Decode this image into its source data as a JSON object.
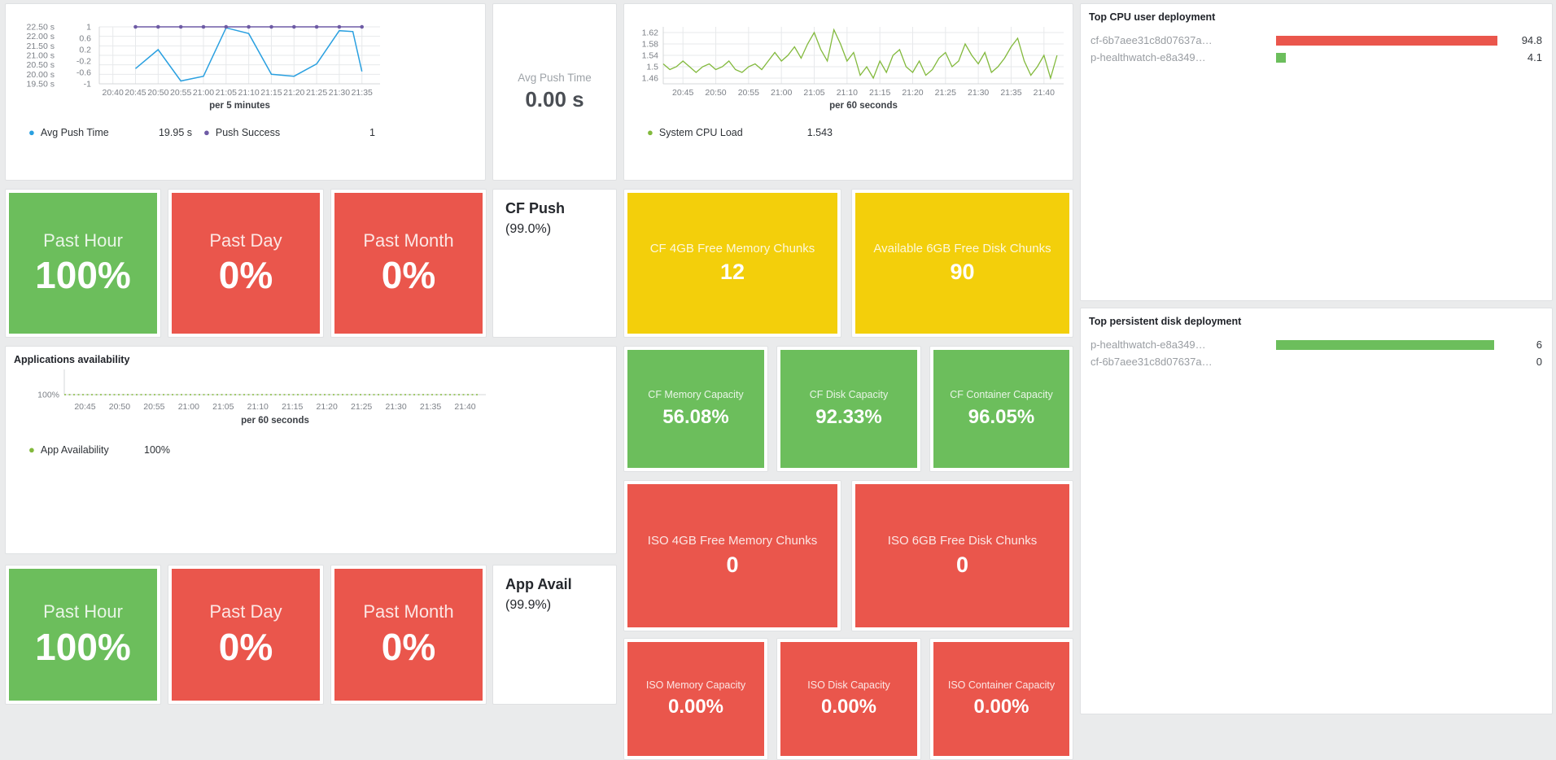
{
  "colors": {
    "green": "#6CBE5C",
    "red": "#EA564C",
    "yellow": "#F3CF0B",
    "blue_series": "#2AA0E0",
    "purple_series": "#6E5BA5",
    "green_series": "#82B93C",
    "panel_bg": "#FFFFFF",
    "page_bg": "#EAEBEC"
  },
  "panel_titles": {
    "apps_availability": "Applications availability",
    "top_cpu": "Top CPU user deployment",
    "top_disk": "Top persistent disk deployment"
  },
  "stat_panels": {
    "avg_push": {
      "label": "Avg Push Time",
      "value": "0.00 s"
    },
    "cf_push": {
      "title": "CF Push",
      "subtitle": "(99.0%)"
    },
    "app_avail": {
      "title": "App Avail",
      "subtitle": "(99.9%)"
    }
  },
  "tiles": {
    "push_hour": {
      "title": "Past Hour",
      "value": "100%"
    },
    "push_day": {
      "title": "Past Day",
      "value": "0%"
    },
    "push_month": {
      "title": "Past Month",
      "value": "0%"
    },
    "cf_mem_chunks": {
      "title": "CF 4GB Free Memory Chunks",
      "value": "12"
    },
    "disk_chunks": {
      "title": "Available 6GB Free Disk Chunks",
      "value": "90"
    },
    "cf_mem_cap": {
      "title": "CF Memory Capacity",
      "value": "56.08%"
    },
    "cf_disk_cap": {
      "title": "CF Disk Capacity",
      "value": "92.33%"
    },
    "cf_cont_cap": {
      "title": "CF Container Capacity",
      "value": "96.05%"
    },
    "iso_mem_chunks": {
      "title": "ISO 4GB Free Memory Chunks",
      "value": "0"
    },
    "iso_disk_chunks": {
      "title": "ISO 6GB Free Disk Chunks",
      "value": "0"
    },
    "avail_hour": {
      "title": "Past Hour",
      "value": "100%"
    },
    "avail_day": {
      "title": "Past Day",
      "value": "0%"
    },
    "avail_month": {
      "title": "Past Month",
      "value": "0%"
    },
    "iso_mem_cap": {
      "title": "ISO Memory Capacity",
      "value": "0.00%"
    },
    "iso_disk_cap": {
      "title": "ISO Disk Capacity",
      "value": "0.00%"
    },
    "iso_cont_cap": {
      "title": "ISO Container Capacity",
      "value": "0.00%"
    }
  },
  "bar_charts": {
    "top_cpu": {
      "max": 96,
      "rows": [
        {
          "label": "cf-6b7aee31c8d07637a…",
          "value": "94.8",
          "num": 94.8,
          "color": "#EA564C"
        },
        {
          "label": "p-healthwatch-e8a349…",
          "value": "4.1",
          "num": 4.1,
          "color": "#6CBE5C"
        }
      ]
    },
    "top_disk": {
      "max": 6.15,
      "rows": [
        {
          "label": "p-healthwatch-e8a349…",
          "value": "6",
          "num": 6,
          "color": "#6CBE5C"
        },
        {
          "label": "cf-6b7aee31c8d07637a…",
          "value": "0",
          "num": 0,
          "color": "#6CBE5C"
        }
      ]
    }
  },
  "chart_data": [
    {
      "id": "push",
      "type": "line",
      "title": "",
      "xlabel": "per 5 minutes",
      "x_tick_labels": [
        "20:40",
        "20:45",
        "20:50",
        "20:55",
        "21:00",
        "21:05",
        "21:10",
        "21:15",
        "21:20",
        "21:25",
        "21:30",
        "21:35"
      ],
      "x_tick_minutes": [
        0,
        5,
        10,
        15,
        20,
        25,
        30,
        35,
        40,
        45,
        50,
        55
      ],
      "x_domain": [
        -3,
        59
      ],
      "left_axis": {
        "tick_labels": [
          "22.50 s",
          "22.00 s",
          "21.50 s",
          "21.00 s",
          "20.50 s",
          "20.00 s",
          "19.50 s"
        ],
        "tick_values": [
          22.5,
          22.0,
          21.5,
          21.0,
          20.5,
          20.0,
          19.5
        ],
        "lim": [
          19.5,
          22.5
        ]
      },
      "right_axis": {
        "tick_labels": [
          "1",
          "0.6",
          "0.2",
          "-0.2",
          "-0.6",
          "-1"
        ],
        "tick_values": [
          1,
          0.6,
          0.2,
          -0.2,
          -0.6,
          -1
        ],
        "lim": [
          -1,
          1
        ]
      },
      "series": [
        {
          "name": "Avg Push Time",
          "legend_value": "19.95 s",
          "color": "#2AA0E0",
          "axis": "left",
          "x_minutes": [
            5,
            10,
            15,
            20,
            25,
            30,
            35,
            40,
            45,
            50,
            53,
            55
          ],
          "values": [
            20.3,
            21.3,
            19.65,
            19.9,
            22.45,
            22.15,
            20.0,
            19.9,
            20.55,
            22.3,
            22.25,
            20.15
          ],
          "markers": false
        },
        {
          "name": "Push Success",
          "legend_value": "1",
          "color": "#6E5BA5",
          "axis": "right",
          "x_minutes": [
            5,
            10,
            15,
            20,
            25,
            30,
            35,
            40,
            45,
            50,
            55
          ],
          "values": [
            1,
            1,
            1,
            1,
            1,
            1,
            1,
            1,
            1,
            1,
            1
          ],
          "markers": true
        }
      ]
    },
    {
      "id": "cpu",
      "type": "line",
      "title": "",
      "xlabel": "per 60 seconds",
      "x_tick_labels": [
        "20:45",
        "20:50",
        "20:55",
        "21:00",
        "21:05",
        "21:10",
        "21:15",
        "21:20",
        "21:25",
        "21:30",
        "21:35",
        "21:40"
      ],
      "x_tick_minutes": [
        0,
        5,
        10,
        15,
        20,
        25,
        30,
        35,
        40,
        45,
        50,
        55
      ],
      "x_domain": [
        -3,
        58
      ],
      "left_axis": {
        "tick_labels": [
          "1.62",
          "1.58",
          "1.54",
          "1.5",
          "1.46"
        ],
        "tick_values": [
          1.62,
          1.58,
          1.54,
          1.5,
          1.46
        ],
        "lim": [
          1.44,
          1.64
        ]
      },
      "series": [
        {
          "name": "System CPU Load",
          "legend_value": "1.543",
          "color": "#82B93C",
          "axis": "left",
          "x_start": -3,
          "x_step": 1,
          "stroke": 1.3,
          "values": [
            1.51,
            1.49,
            1.5,
            1.52,
            1.5,
            1.48,
            1.5,
            1.51,
            1.49,
            1.5,
            1.52,
            1.49,
            1.48,
            1.5,
            1.51,
            1.49,
            1.52,
            1.55,
            1.52,
            1.54,
            1.57,
            1.53,
            1.58,
            1.62,
            1.56,
            1.52,
            1.63,
            1.58,
            1.52,
            1.55,
            1.47,
            1.5,
            1.46,
            1.52,
            1.48,
            1.54,
            1.56,
            1.5,
            1.48,
            1.52,
            1.47,
            1.49,
            1.53,
            1.55,
            1.5,
            1.52,
            1.58,
            1.54,
            1.51,
            1.55,
            1.48,
            1.5,
            1.53,
            1.57,
            1.6,
            1.52,
            1.47,
            1.5,
            1.54,
            1.46,
            1.54
          ],
          "markers": false
        }
      ]
    },
    {
      "id": "avail",
      "type": "line",
      "title": "Applications availability",
      "xlabel": "per 60 seconds",
      "x_tick_labels": [
        "20:45",
        "20:50",
        "20:55",
        "21:00",
        "21:05",
        "21:10",
        "21:15",
        "21:20",
        "21:25",
        "21:30",
        "21:35",
        "21:40"
      ],
      "x_tick_minutes": [
        0,
        5,
        10,
        15,
        20,
        25,
        30,
        35,
        40,
        45,
        50,
        55
      ],
      "x_domain": [
        -3,
        58
      ],
      "left_axis": {
        "tick_labels": [
          "100%"
        ],
        "tick_values": [
          100
        ],
        "lim": [
          100,
          101.4
        ]
      },
      "series": [
        {
          "name": "App Availability",
          "legend_value": "100%",
          "color": "#82B93C",
          "axis": "left",
          "x_minutes": [
            -3,
            57
          ],
          "values": [
            100,
            100
          ],
          "dashed": true,
          "markers": false
        }
      ]
    }
  ]
}
